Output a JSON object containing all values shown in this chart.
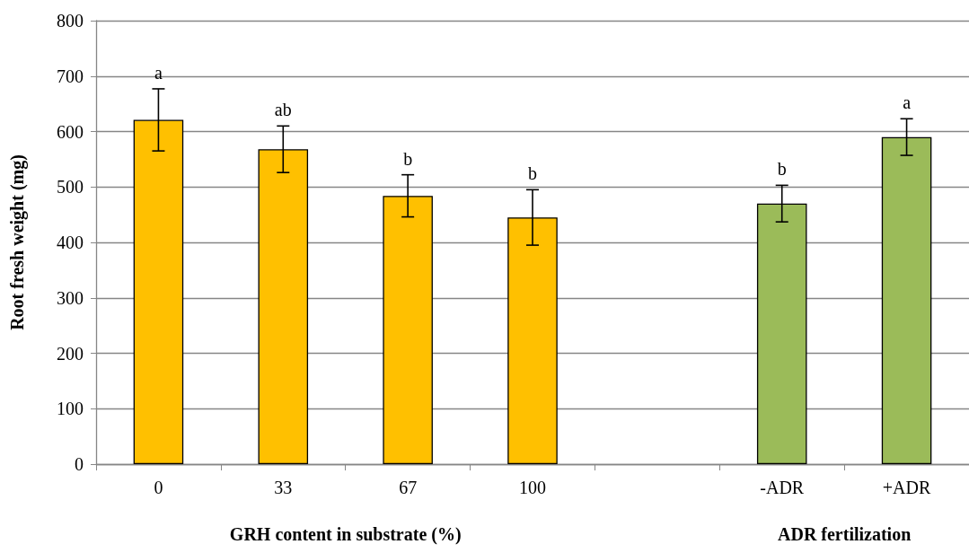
{
  "chart_data": {
    "type": "bar",
    "ylabel": "Root fresh weight (mg)",
    "xlabel": "GRH content in substrate (%)",
    "categories": [
      "0",
      "33",
      "67",
      "100",
      null,
      "-ADR",
      "+ADR"
    ],
    "values": [
      621,
      568,
      484,
      445,
      null,
      470,
      590
    ],
    "errors": [
      56,
      42,
      38,
      50,
      null,
      33,
      33
    ],
    "colors": [
      "#ffc000",
      "#ffc000",
      "#ffc000",
      "#ffc000",
      "#ffc000",
      "#9bbb59",
      "#9bbb59"
    ],
    "ylim": [
      0,
      800
    ],
    "yticks": [
      0,
      100,
      200,
      300,
      400,
      500,
      600,
      700,
      800
    ],
    "grid": "y",
    "annotations": [
      {
        "text": "a",
        "x": "0",
        "y": 677
      },
      {
        "text": "ab",
        "x": "33",
        "y": 610
      },
      {
        "text": "b",
        "x": "67",
        "y": 522
      },
      {
        "text": "b",
        "x": "100",
        "y": 495
      },
      {
        "text": "b",
        "x": "-ADR",
        "y": 503
      },
      {
        "text": "a",
        "x": "+ADR",
        "y": 623
      },
      "ADR fertilization"
    ]
  }
}
